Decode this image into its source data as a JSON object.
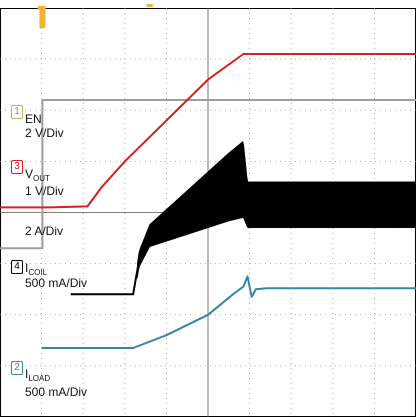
{
  "chart_data": {
    "type": "line",
    "title": "",
    "xlabel": "",
    "ylabel": "",
    "grid": true,
    "divisions": {
      "x": 10,
      "y": 8
    },
    "x_range_div": [
      0,
      10
    ],
    "y_range_div": [
      0,
      8
    ],
    "channels": [
      {
        "id": "1",
        "name": "EN",
        "scale": "2 V/Div",
        "color": "#9e9e9e",
        "marker_color": "#f2b233",
        "points_div": [
          [
            0.0,
            3.3
          ],
          [
            1.02,
            3.3
          ],
          [
            1.02,
            6.2
          ],
          [
            10.0,
            6.2
          ]
        ]
      },
      {
        "id": "3",
        "name_main": "V",
        "name_sub": "OUT",
        "scale": "1 V/Div",
        "color": "#d62020",
        "points_div": [
          [
            0.0,
            4.1
          ],
          [
            1.2,
            4.1
          ],
          [
            2.1,
            4.12
          ],
          [
            2.45,
            4.5
          ],
          [
            3.0,
            5.0
          ],
          [
            4.0,
            5.8
          ],
          [
            5.0,
            6.6
          ],
          [
            5.85,
            7.1
          ],
          [
            10.0,
            7.1
          ]
        ]
      },
      {
        "id": "4",
        "name_main": "I",
        "name_sub": "COIL",
        "scale": "500 mA/Div",
        "extra_scale": "2 A/Div",
        "color": "#000000",
        "points_div": [
          [
            1.7,
            2.4
          ],
          [
            3.2,
            2.4
          ],
          [
            3.35,
            3.1
          ],
          [
            3.6,
            3.55
          ],
          [
            4.5,
            4.0
          ],
          [
            5.5,
            4.5
          ],
          [
            5.85,
            4.65
          ],
          [
            5.95,
            4.15
          ],
          [
            10.0,
            4.15
          ]
        ],
        "ripple_div": [
          [
            3.3,
            0.3
          ],
          [
            5.85,
            1.5
          ],
          [
            5.95,
            0.9
          ],
          [
            10.0,
            0.9
          ]
        ]
      },
      {
        "id": "2",
        "name_main": "I",
        "name_sub": "LOAD",
        "scale": "500 mA/Div",
        "color": "#3a84a6",
        "points_div": [
          [
            1.0,
            1.35
          ],
          [
            3.2,
            1.35
          ],
          [
            4.0,
            1.6
          ],
          [
            5.0,
            2.0
          ],
          [
            5.6,
            2.4
          ],
          [
            5.85,
            2.55
          ],
          [
            5.95,
            2.75
          ],
          [
            6.05,
            2.35
          ],
          [
            6.15,
            2.5
          ],
          [
            6.4,
            2.52
          ],
          [
            10.0,
            2.52
          ]
        ]
      }
    ]
  }
}
